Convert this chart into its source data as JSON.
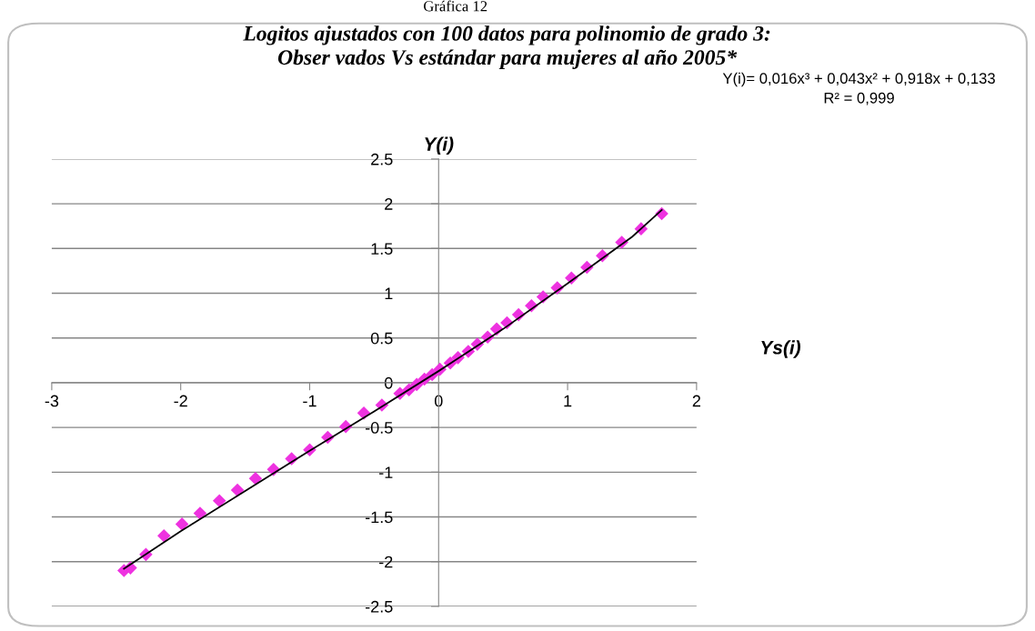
{
  "chart_data": {
    "type": "scatter",
    "title": "Logitos ajustados con 100 datos para polinomio de grado 3:\nObser vados Vs estándar para mujeres al año 2005*",
    "xlabel": "Ys(i)",
    "ylabel": "Y(i)",
    "annotations": [
      "Gráfica 12",
      "Y(i)= 0,016x³ + 0,043x² + 0,918x + 0,133\nR² = 0,999"
    ],
    "series": [
      {
        "color": "#ee32e0",
        "marker": "diamond",
        "x": [
          -2.44,
          -2.39,
          -2.27,
          -2.13,
          -1.99,
          -1.85,
          -1.7,
          -1.56,
          -1.42,
          -1.28,
          -1.14,
          -1.0,
          -0.86,
          -0.72,
          -0.58,
          -0.44,
          -0.3,
          -0.23,
          -0.17,
          -0.11,
          -0.05,
          0.01,
          0.09,
          0.15,
          0.23,
          0.3,
          0.38,
          0.45,
          0.53,
          0.62,
          0.72,
          0.81,
          0.92,
          1.03,
          1.15,
          1.27,
          1.42,
          1.57,
          1.73
        ],
        "values": [
          -2.1,
          -2.07,
          -1.92,
          -1.71,
          -1.58,
          -1.46,
          -1.32,
          -1.2,
          -1.07,
          -0.97,
          -0.85,
          -0.75,
          -0.61,
          -0.49,
          -0.34,
          -0.25,
          -0.12,
          -0.08,
          -0.02,
          0.04,
          0.09,
          0.15,
          0.22,
          0.28,
          0.35,
          0.43,
          0.51,
          0.6,
          0.67,
          0.76,
          0.86,
          0.96,
          1.06,
          1.17,
          1.29,
          1.42,
          1.57,
          1.72,
          1.89
        ]
      },
      {
        "type": "line",
        "color": "#000000",
        "marker": "none",
        "line_style": "solid",
        "x": [
          -2.44,
          -2.0,
          -1.5,
          -1.0,
          -0.5,
          0.0,
          0.5,
          1.0,
          1.5,
          1.73
        ],
        "values": [
          -2.08,
          -1.66,
          -1.21,
          -0.76,
          -0.32,
          0.13,
          0.6,
          1.11,
          1.63,
          1.93
        ]
      }
    ],
    "xlim": [
      -3,
      2
    ],
    "xticks": [
      -3,
      -2,
      -1,
      0,
      1,
      2
    ],
    "ylim": [
      -2.5,
      2.5
    ],
    "yticks": [
      -2.5,
      -2,
      -1.5,
      -1,
      -0.5,
      0,
      0.5,
      1,
      1.5,
      2,
      2.5
    ],
    "grid": "y"
  }
}
